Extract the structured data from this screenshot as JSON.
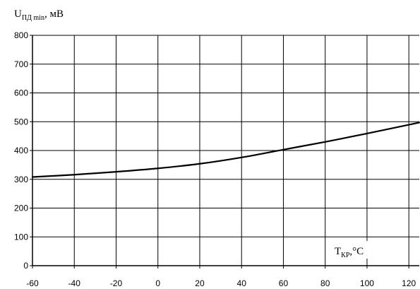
{
  "chart_data": {
    "type": "line",
    "title": "",
    "ylabel": {
      "main": "U",
      "sub": "ПД min",
      "suffix": ", мВ"
    },
    "xlabel": {
      "main": "T",
      "sub": "КР",
      "suffix": ",°C"
    },
    "xlim": [
      -60,
      125
    ],
    "ylim": [
      0,
      800
    ],
    "xticks": [
      -60,
      -40,
      -20,
      0,
      20,
      40,
      60,
      80,
      100,
      120
    ],
    "yticks": [
      0,
      100,
      200,
      300,
      400,
      500,
      600,
      700,
      800
    ],
    "grid": true,
    "series": [
      {
        "x": [
          -60,
          -40,
          -20,
          0,
          20,
          40,
          60,
          80,
          100,
          125
        ],
        "y": [
          308,
          316,
          326,
          338,
          354,
          376,
          403,
          430,
          459,
          497
        ]
      }
    ]
  }
}
